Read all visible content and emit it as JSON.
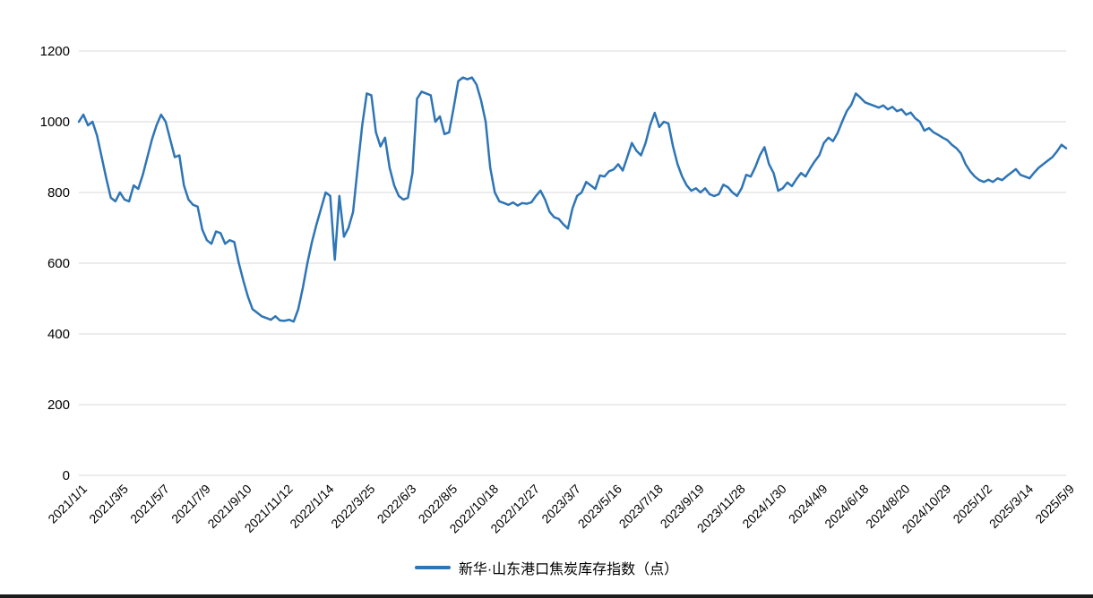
{
  "chart_data": {
    "type": "line",
    "title": "",
    "xlabel": "",
    "ylabel": "",
    "ylim": [
      0,
      1200
    ],
    "yticks": [
      0,
      200,
      400,
      600,
      800,
      1000,
      1200
    ],
    "grid": "horizontal",
    "gridline_color": "#D9D9D9",
    "line_color": "#2E75B6",
    "legend_position": "bottom",
    "xtick_every": 9,
    "xtick_labels": [
      "2021/1/1",
      "2021/3/5",
      "2021/5/7",
      "2021/7/9",
      "2021/9/10",
      "2021/11/12",
      "2022/1/14",
      "2022/3/25",
      "2022/6/3",
      "2022/8/5",
      "2022/10/18",
      "2022/12/27",
      "2023/3/7",
      "2023/5/16",
      "2023/7/18",
      "2023/9/19",
      "2023/11/28",
      "2024/1/30",
      "2024/4/9",
      "2024/6/18",
      "2024/8/20",
      "2024/10/29",
      "2025/1/2",
      "2025/3/14",
      "2025/5/9"
    ],
    "series": [
      {
        "name": "新华·山东港口焦炭库存指数（点）",
        "values": [
          1000,
          1020,
          990,
          1000,
          960,
          900,
          840,
          785,
          775,
          800,
          780,
          775,
          820,
          810,
          850,
          900,
          950,
          990,
          1020,
          1000,
          950,
          900,
          905,
          820,
          780,
          765,
          760,
          695,
          665,
          655,
          690,
          685,
          655,
          665,
          660,
          600,
          550,
          505,
          470,
          460,
          450,
          445,
          440,
          450,
          438,
          437,
          440,
          435,
          470,
          530,
          600,
          660,
          710,
          755,
          800,
          790,
          610,
          790,
          675,
          700,
          745,
          870,
          990,
          1080,
          1075,
          970,
          930,
          955,
          870,
          820,
          790,
          780,
          785,
          855,
          1065,
          1085,
          1080,
          1075,
          1000,
          1015,
          965,
          970,
          1040,
          1115,
          1125,
          1120,
          1125,
          1105,
          1060,
          1000,
          870,
          800,
          775,
          770,
          765,
          772,
          763,
          770,
          768,
          772,
          790,
          805,
          780,
          745,
          730,
          725,
          710,
          698,
          755,
          790,
          800,
          830,
          820,
          810,
          848,
          845,
          860,
          865,
          880,
          862,
          900,
          940,
          918,
          905,
          940,
          990,
          1025,
          985,
          1000,
          995,
          930,
          880,
          845,
          820,
          805,
          812,
          800,
          812,
          795,
          790,
          795,
          822,
          815,
          800,
          790,
          812,
          850,
          845,
          872,
          905,
          928,
          880,
          855,
          805,
          812,
          828,
          818,
          838,
          855,
          845,
          868,
          888,
          905,
          940,
          955,
          945,
          968,
          1000,
          1030,
          1048,
          1080,
          1068,
          1055,
          1050,
          1045,
          1040,
          1046,
          1035,
          1042,
          1030,
          1035,
          1020,
          1026,
          1010,
          1000,
          975,
          982,
          970,
          963,
          955,
          948,
          935,
          925,
          910,
          880,
          860,
          845,
          835,
          830,
          836,
          830,
          840,
          835,
          846,
          856,
          866,
          850,
          845,
          840,
          856,
          870,
          880,
          890,
          900,
          916,
          935,
          925
        ]
      }
    ]
  },
  "legend": {
    "label": "新华·山东港口焦炭库存指数（点）"
  }
}
